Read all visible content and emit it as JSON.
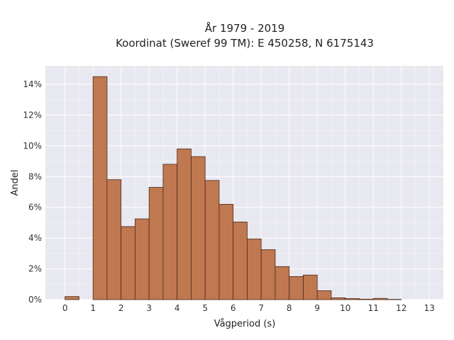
{
  "chart_data": {
    "type": "bar",
    "title": "År 1979 - 2019",
    "subtitle": "Koordinat (Sweref 99 TM): E 450258, N 6175143",
    "xlabel": "Vågperiod (s)",
    "ylabel": "Andel",
    "bin_width": 0.5,
    "bin_starts": [
      0,
      0.5,
      1,
      1.5,
      2,
      2.5,
      3,
      3.5,
      4,
      4.5,
      5,
      5.5,
      6,
      6.5,
      7,
      7.5,
      8,
      8.5,
      9,
      9.5,
      10,
      10.5,
      11,
      11.5,
      12
    ],
    "values": [
      0.2,
      0,
      14.5,
      7.8,
      4.75,
      5.25,
      7.3,
      8.8,
      9.8,
      9.3,
      7.75,
      6.2,
      5.05,
      3.95,
      3.25,
      2.15,
      1.5,
      1.6,
      0.58,
      0.12,
      0.07,
      0.03,
      0.08,
      0.02,
      0
    ],
    "xlim": [
      -0.7,
      13.5
    ],
    "ylim": [
      0,
      15.2
    ],
    "xticks": [
      "0",
      "1",
      "2",
      "3",
      "4",
      "5",
      "6",
      "7",
      "8",
      "9",
      "10",
      "11",
      "12",
      "13"
    ],
    "yticks": [
      "0%",
      "2%",
      "4%",
      "6%",
      "8%",
      "10%",
      "12%",
      "14%"
    ],
    "grid": true,
    "colors": {
      "bar_fill": "#c07850",
      "bar_stroke": "#4a2a1a",
      "plot_background": "#e8e8f0",
      "grid": "#ffffff"
    }
  }
}
